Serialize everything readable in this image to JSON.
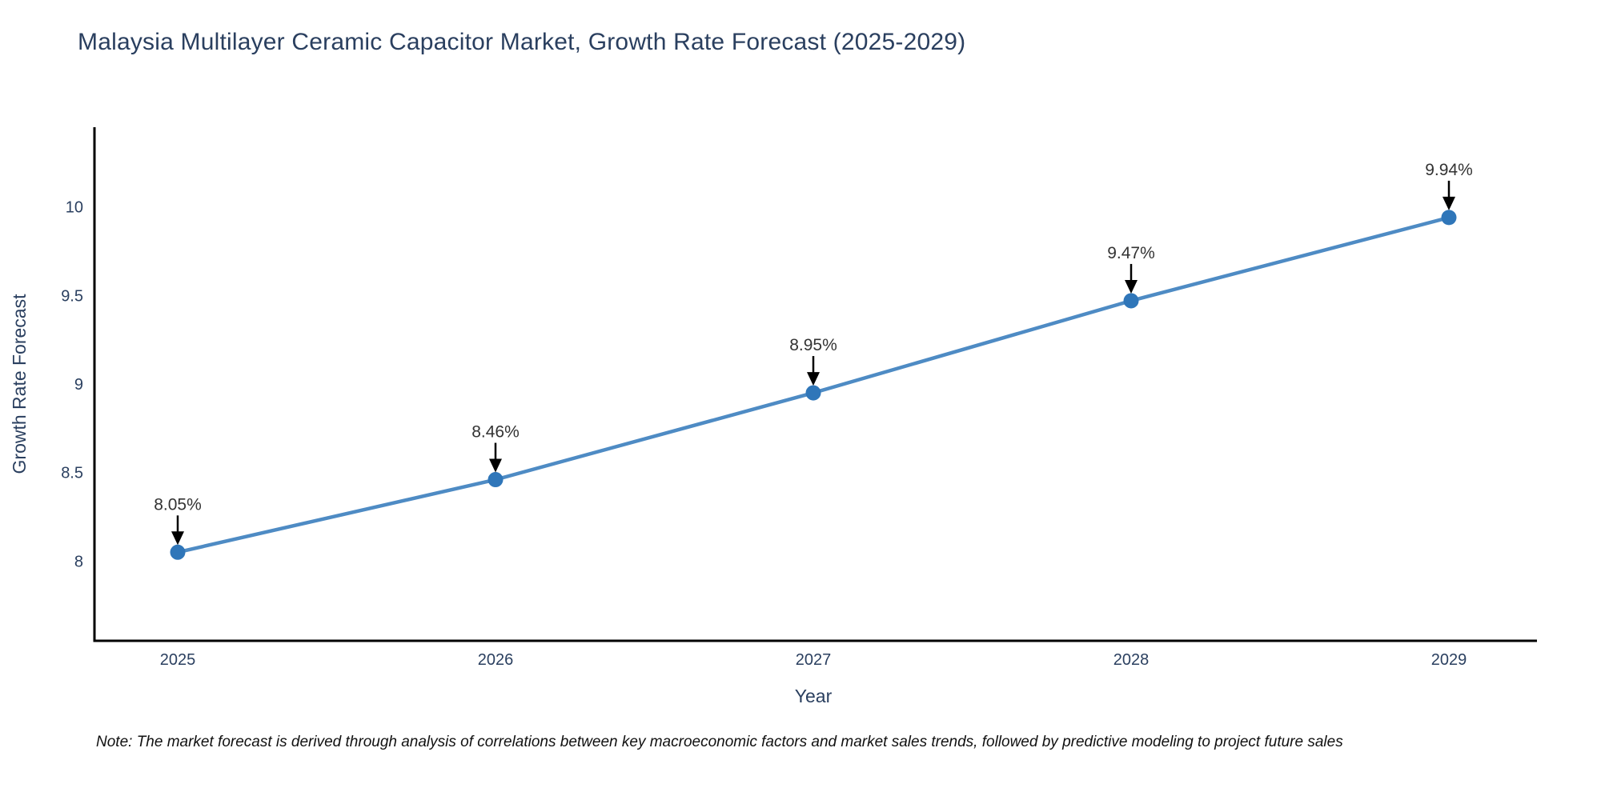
{
  "title": "Malaysia Multilayer Ceramic Capacitor Market, Growth Rate Forecast (2025-2029)",
  "note": "Note: The market forecast is derived through analysis of correlations between key macroeconomic factors and market sales trends, followed by predictive modeling to project future sales",
  "colors": {
    "title": "#2a3f5f",
    "tick_label": "#2a3f5f",
    "axis_title": "#2a3f5f",
    "axis_line": "#000000",
    "line": "#4e8bc4",
    "marker": "#2f76b9",
    "annotation_text": "#333333",
    "arrow": "#000000",
    "note_text": "#111111",
    "background": "#ffffff"
  },
  "chart_data": {
    "type": "line",
    "title": "Malaysia Multilayer Ceramic Capacitor Market, Growth Rate Forecast (2025-2029)",
    "xlabel": "Year",
    "ylabel": "Growth Rate Forecast",
    "x": [
      2025,
      2026,
      2027,
      2028,
      2029
    ],
    "xtick_labels": [
      "2025",
      "2026",
      "2027",
      "2028",
      "2029"
    ],
    "series": [
      {
        "name": "Growth Rate Forecast",
        "values": [
          8.05,
          8.46,
          8.95,
          9.47,
          9.94
        ]
      }
    ],
    "point_labels": [
      "8.05%",
      "8.46%",
      "8.95%",
      "9.47%",
      "9.94%"
    ],
    "yticks": [
      8,
      8.5,
      9,
      9.5,
      10
    ],
    "ytick_labels": [
      "8",
      "8.5",
      "9",
      "9.5",
      "10"
    ],
    "ylim": [
      7.55,
      10.45
    ],
    "grid": false,
    "legend": false,
    "annotations": "data value labels with downward arrows above each point"
  }
}
